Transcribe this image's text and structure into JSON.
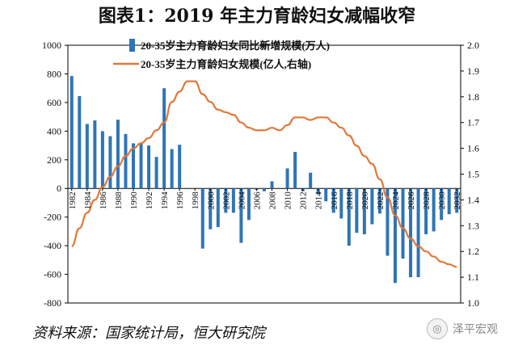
{
  "title": "图表1：2019 年主力育龄妇女减幅收窄",
  "source": "资料来源：国家统计局，恒大研究院",
  "watermark": "泽平宏观",
  "chart_data": {
    "type": "bar+line",
    "categories": [
      1982,
      1983,
      1984,
      1985,
      1986,
      1987,
      1988,
      1989,
      1990,
      1991,
      1992,
      1993,
      1994,
      1995,
      1996,
      1997,
      1998,
      1999,
      2000,
      2001,
      2002,
      2003,
      2004,
      2005,
      2006,
      2007,
      2008,
      2009,
      2010,
      2011,
      2012,
      2013,
      2014,
      2015,
      2016,
      2017,
      2018,
      2019,
      2020,
      2021,
      2022,
      2023,
      2024,
      2025,
      2026,
      2027,
      2028,
      2029,
      2030,
      2031,
      2032
    ],
    "xtick_labels": [
      "1982",
      "1984",
      "1986",
      "1988",
      "1990",
      "1992",
      "1994",
      "1996",
      "1998",
      "2000",
      "2002",
      "2004",
      "2006",
      "2008",
      "2010",
      "2012",
      "2014",
      "2016",
      "2018",
      "2020",
      "2022",
      "2024",
      "2026",
      "2028",
      "2030",
      "2032"
    ],
    "y_left": {
      "ylim": [
        -800,
        1000
      ],
      "ticks": [
        "1000",
        "800",
        "600",
        "400",
        "200",
        "0",
        "-200",
        "-400",
        "-600",
        "-800"
      ]
    },
    "y_right": {
      "ylim": [
        1.0,
        2.0
      ],
      "ticks": [
        "2.0",
        "1.9",
        "1.8",
        "1.7",
        "1.6",
        "1.5",
        "1.4",
        "1.3",
        "1.2",
        "1.1",
        "1.0"
      ]
    },
    "series": [
      {
        "name": "20-35岁主力育龄妇女同比新增规模(万人)",
        "axis": "left",
        "type": "bar",
        "color": "#2e75b6",
        "values": [
          785,
          645,
          450,
          475,
          400,
          365,
          480,
          380,
          315,
          320,
          300,
          220,
          700,
          275,
          305,
          0,
          0,
          -420,
          -285,
          -270,
          -170,
          -170,
          -380,
          -220,
          -10,
          -20,
          50,
          0,
          140,
          255,
          -20,
          110,
          -40,
          -90,
          -170,
          -210,
          -400,
          -310,
          -320,
          -250,
          -175,
          -470,
          -660,
          -490,
          -620,
          -620,
          -320,
          -300,
          -220,
          -180,
          -170
        ]
      },
      {
        "name": "20-35岁主力育龄妇女规模(亿人,右轴)",
        "axis": "right",
        "type": "line",
        "color": "#e0793a",
        "values": [
          1.22,
          1.29,
          1.35,
          1.4,
          1.45,
          1.49,
          1.53,
          1.57,
          1.6,
          1.62,
          1.64,
          1.67,
          1.7,
          1.78,
          1.82,
          1.86,
          1.86,
          1.81,
          1.78,
          1.75,
          1.74,
          1.73,
          1.7,
          1.68,
          1.67,
          1.67,
          1.68,
          1.67,
          1.69,
          1.72,
          1.72,
          1.71,
          1.72,
          1.72,
          1.7,
          1.68,
          1.65,
          1.61,
          1.57,
          1.54,
          1.48,
          1.41,
          1.34,
          1.29,
          1.25,
          1.22,
          1.2,
          1.18,
          1.16,
          1.15,
          1.14
        ]
      }
    ]
  }
}
